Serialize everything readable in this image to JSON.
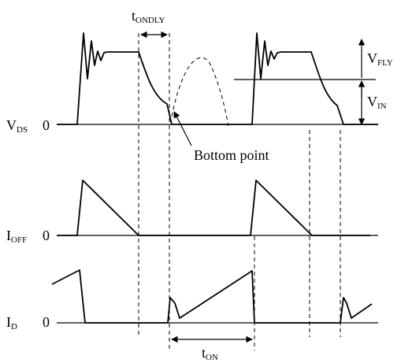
{
  "signals": {
    "vds": {
      "main": "V",
      "sub": "DS",
      "zero": "0"
    },
    "ioff": {
      "main": "I",
      "sub": "OFF",
      "zero": "0"
    },
    "id": {
      "main": "I",
      "sub": "D",
      "zero": "0"
    }
  },
  "annotations": {
    "t_ondly": {
      "main": "t",
      "sub": "ONDLY"
    },
    "t_on": {
      "main": "t",
      "sub": "ON"
    },
    "v_fly": {
      "main": "V",
      "sub": "FLY"
    },
    "v_in": {
      "main": "V",
      "sub": "IN"
    },
    "bottom_point": "Bottom point"
  }
}
